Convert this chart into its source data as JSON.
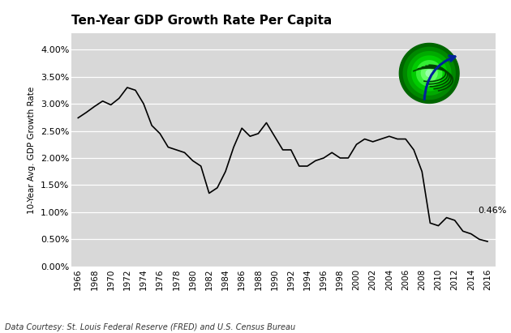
{
  "title": "Ten-Year GDP Growth Rate Per Capita",
  "ylabel": "10-Year Avg. GDP Growth Rate",
  "footer": "Data Courtesy: St. Louis Federal Reserve (FRED) and U.S. Census Bureau",
  "annotation": "0.46%",
  "bg_color": "#d8d8d8",
  "fig_color": "#ffffff",
  "line_color": "#000000",
  "years": [
    1966,
    1967,
    1968,
    1969,
    1970,
    1971,
    1972,
    1973,
    1974,
    1975,
    1976,
    1977,
    1978,
    1979,
    1980,
    1981,
    1982,
    1983,
    1984,
    1985,
    1986,
    1987,
    1988,
    1989,
    1990,
    1991,
    1992,
    1993,
    1994,
    1995,
    1996,
    1997,
    1998,
    1999,
    2000,
    2001,
    2002,
    2003,
    2004,
    2005,
    2006,
    2007,
    2008,
    2009,
    2010,
    2011,
    2012,
    2013,
    2014,
    2015,
    2016
  ],
  "values": [
    0.0274,
    0.0284,
    0.0295,
    0.0305,
    0.0298,
    0.031,
    0.033,
    0.0325,
    0.03,
    0.026,
    0.0245,
    0.022,
    0.0215,
    0.021,
    0.0195,
    0.0185,
    0.0135,
    0.0145,
    0.0175,
    0.022,
    0.0255,
    0.024,
    0.0245,
    0.0265,
    0.024,
    0.0215,
    0.0215,
    0.0185,
    0.0185,
    0.0195,
    0.02,
    0.021,
    0.02,
    0.02,
    0.0225,
    0.0235,
    0.023,
    0.0235,
    0.024,
    0.0235,
    0.0235,
    0.0215,
    0.0175,
    0.008,
    0.0075,
    0.009,
    0.0085,
    0.0065,
    0.006,
    0.005,
    0.0046
  ],
  "ylim": [
    0.0,
    0.043
  ],
  "yticks": [
    0.0,
    0.005,
    0.01,
    0.015,
    0.02,
    0.025,
    0.03,
    0.035,
    0.04
  ],
  "ytick_labels": [
    "0.00%",
    "0.50%",
    "1.00%",
    "1.50%",
    "2.00%",
    "2.50%",
    "3.00%",
    "3.50%",
    "4.00%"
  ],
  "xtick_years": [
    1966,
    1968,
    1970,
    1972,
    1974,
    1976,
    1978,
    1980,
    1982,
    1984,
    1986,
    1988,
    1990,
    1992,
    1994,
    1996,
    1998,
    2000,
    2002,
    2004,
    2006,
    2008,
    2010,
    2012,
    2014,
    2016
  ],
  "xlim": [
    1965.2,
    2017.0
  ]
}
